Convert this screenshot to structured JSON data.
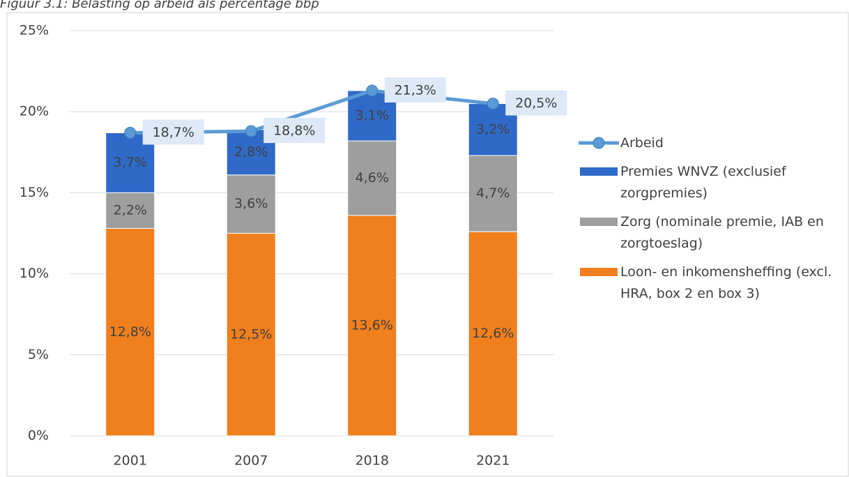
{
  "chart_data": {
    "type": "bar",
    "stacked": true,
    "title": "Figuur 3.1: Belasting op arbeid als percentage bbp",
    "categories": [
      "2001",
      "2007",
      "2018",
      "2021"
    ],
    "series": [
      {
        "name": "Loon- en inkomensheffing (excl. HRA, box 2 en box 3)",
        "color": "#f07f1e",
        "values": [
          12.8,
          12.5,
          13.6,
          12.6
        ],
        "value_labels": [
          "12,8%",
          "12,5%",
          "13,6%",
          "12,6%"
        ]
      },
      {
        "name": "Zorg (nominale premie, IAB en zorgtoeslag)",
        "color": "#9e9e9e",
        "values": [
          2.2,
          3.6,
          4.6,
          4.7
        ],
        "value_labels": [
          "2,2%",
          "3,6%",
          "4,6%",
          "4,7%"
        ]
      },
      {
        "name": "Premies WNVZ (exclusief zorgpremies)",
        "color": "#2f6ac8",
        "values": [
          3.7,
          2.8,
          3.1,
          3.2
        ],
        "value_labels": [
          "3,7%",
          "2,8%",
          "3,1%",
          "3,2%"
        ]
      },
      {
        "name": "Arbeid",
        "type": "line",
        "color": "#5b9bd5",
        "values": [
          18.7,
          18.8,
          21.3,
          20.5
        ],
        "value_labels": [
          "18,7%",
          "18,8%",
          "21,3%",
          "20,5%"
        ]
      }
    ],
    "ylim": [
      0,
      25
    ],
    "yticks": [
      {
        "value": 0,
        "label": "0%"
      },
      {
        "value": 5,
        "label": "5%"
      },
      {
        "value": 10,
        "label": "10%"
      },
      {
        "value": 15,
        "label": "15%"
      },
      {
        "value": 20,
        "label": "20%"
      },
      {
        "value": 25,
        "label": "25%"
      }
    ],
    "grid": true,
    "legend": "right"
  }
}
